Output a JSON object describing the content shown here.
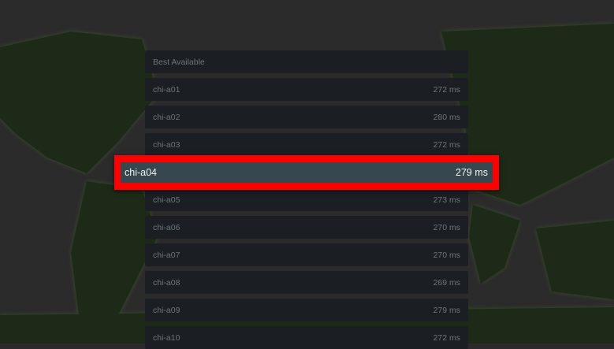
{
  "colors": {
    "accent": "#ff0000",
    "selected_bg": "#37474f",
    "row_bg": "#1b1f23",
    "map_land": "#1e2a18"
  },
  "header": {
    "label": "Best Available"
  },
  "servers": [
    {
      "name": "chi-a01",
      "ping": "272 ms"
    },
    {
      "name": "chi-a02",
      "ping": "280 ms"
    },
    {
      "name": "chi-a03",
      "ping": "272 ms"
    },
    {
      "name": "chi-a04",
      "ping": "279 ms",
      "selected": true
    },
    {
      "name": "chi-a05",
      "ping": "273 ms"
    },
    {
      "name": "chi-a06",
      "ping": "270 ms"
    },
    {
      "name": "chi-a07",
      "ping": "270 ms"
    },
    {
      "name": "chi-a08",
      "ping": "269 ms"
    },
    {
      "name": "chi-a09",
      "ping": "279 ms"
    },
    {
      "name": "chi-a10",
      "ping": "272 ms"
    }
  ]
}
